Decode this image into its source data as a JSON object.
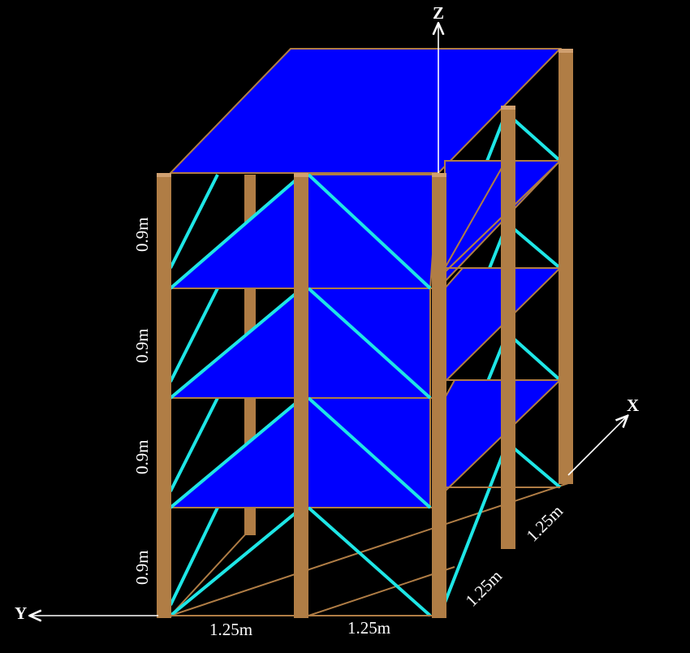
{
  "diagram": {
    "axes": {
      "x": "X",
      "y": "Y",
      "z": "Z"
    },
    "dimensions": {
      "story_height": "0.9m",
      "bay_width_y_1": "1.25m",
      "bay_width_y_2": "1.25m",
      "bay_width_x_1": "1.25m",
      "bay_width_x_2": "1.25m"
    },
    "structure": {
      "stories": 4,
      "bays_y": 2,
      "bays_x": 2,
      "columns_color": "#B07D45",
      "slab_color": "#0000FF",
      "brace_color": "#1EE6E6",
      "background": "#000000"
    }
  }
}
